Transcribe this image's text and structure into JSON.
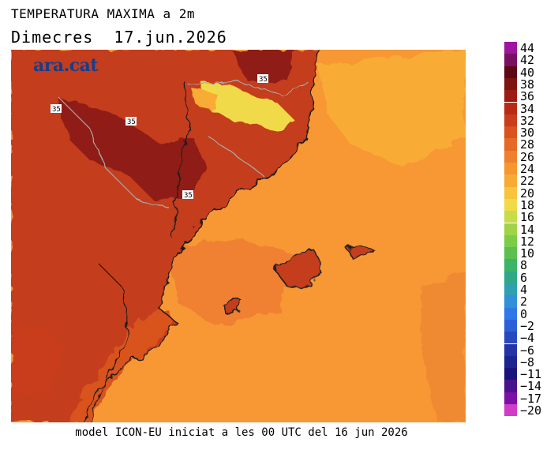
{
  "header": {
    "title": "TEMPERATURA MAXIMA a 2m",
    "day": "Dimecres",
    "date": "17.jun.2026"
  },
  "logo": {
    "text": "ara.cat"
  },
  "footer": {
    "text": "model ICON-EU iniciat a les 00 UTC del 16 jun 2026"
  },
  "map": {
    "isotherm_labels": [
      "35",
      "35",
      "35",
      "35"
    ],
    "dominant_colors": {
      "sea": "#f79834",
      "land_hot": "#c43c1a",
      "land_very_hot": "#8f1b12",
      "mountains": "#f5d246"
    }
  },
  "legend": {
    "labels": [
      "44",
      "42",
      "40",
      "38",
      "36",
      "34",
      "32",
      "30",
      "28",
      "26",
      "24",
      "22",
      "20",
      "18",
      "16",
      "14",
      "12",
      "10",
      "8",
      "6",
      "4",
      "2",
      "0",
      "−2",
      "−4",
      "−6",
      "−8",
      "−11",
      "−14",
      "−17",
      "−20"
    ],
    "colors": [
      "#9e15a0",
      "#7a1060",
      "#5a0a10",
      "#7e1410",
      "#9c1c12",
      "#b82a15",
      "#c93d1c",
      "#d9521f",
      "#e56a25",
      "#f08030",
      "#f5962f",
      "#f8ab34",
      "#f8c33e",
      "#f0da48",
      "#c8dc48",
      "#a0d448",
      "#7ccc48",
      "#5cc050",
      "#3cb468",
      "#30a888",
      "#30a0b0",
      "#3090d8",
      "#3078e8",
      "#2c60d8",
      "#2848c0",
      "#2234a8",
      "#1c2490",
      "#1a147a",
      "#4a128c",
      "#7c10a4",
      "#d03cc8"
    ]
  }
}
